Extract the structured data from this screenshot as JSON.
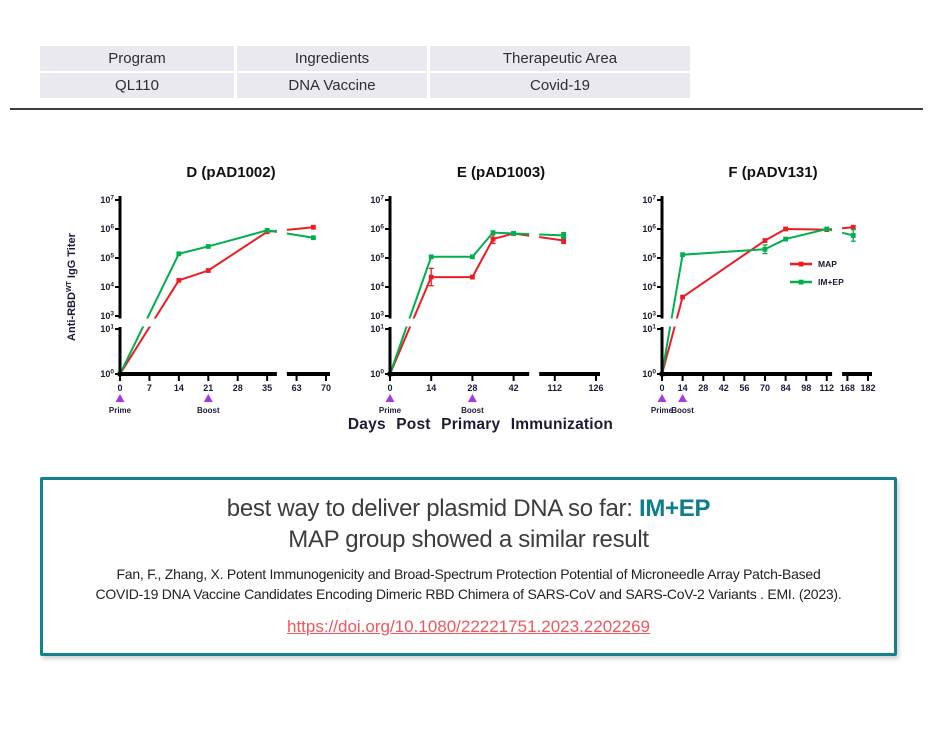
{
  "table": {
    "headers": [
      "Program",
      "Ingredients",
      "Therapeutic Area"
    ],
    "rows": [
      [
        "QL110",
        "DNA Vaccine",
        "Covid-19"
      ]
    ]
  },
  "figure": {
    "x_axis_title": "Days Post Primary Immunization",
    "y_axis_title": {
      "base": "Anti-RBD",
      "sup": "WT",
      "rest": " IgG Titer"
    }
  },
  "legend": [
    {
      "label": "MAP",
      "color": "#ed1c24"
    },
    {
      "label": "IM+EP",
      "color": "#00b04e"
    }
  ],
  "colors": {
    "map_red": "#ed1c24",
    "imep_green": "#00b04e",
    "arrow_purple": "#a838e0",
    "box_teal": "#17808d",
    "link_red": "#f4555c",
    "table_cell_bg": "#e9e9ef",
    "axis_black": "#000000",
    "label_navy": "#1b1b35"
  },
  "chart_data": {
    "type": "line",
    "y_scale": "log10, broken axis: lower segment 10^0-10^1, upper segment 10^3-10^7",
    "y_ticks_upper_exponents": [
      7,
      6,
      5,
      4,
      3
    ],
    "y_ticks_lower_exponents": [
      1,
      0
    ],
    "charts": [
      {
        "title": "D (pAD1002)",
        "xticks": [
          0,
          7,
          14,
          21,
          28,
          35,
          63,
          70
        ],
        "xbreak_after_index": 5,
        "show_ylabel": true,
        "annotations": [
          {
            "label": "Prime",
            "day": 0
          },
          {
            "label": "Boost",
            "day": 21
          }
        ],
        "series": [
          {
            "name": "MAP",
            "color": "#ed1c24",
            "points": [
              {
                "d": 0,
                "v": 1
              },
              {
                "d": 14,
                "v": 17000
              },
              {
                "d": 21,
                "v": 37000
              },
              {
                "d": 35,
                "v": 800000
              },
              {
                "d": 67,
                "v": 1150000
              }
            ]
          },
          {
            "name": "IM+EP",
            "color": "#00b04e",
            "points": [
              {
                "d": 0,
                "v": 1
              },
              {
                "d": 14,
                "v": 140000
              },
              {
                "d": 21,
                "v": 250000
              },
              {
                "d": 35,
                "v": 900000
              },
              {
                "d": 67,
                "v": 500000
              }
            ]
          }
        ]
      },
      {
        "title": "E (pAD1003)",
        "xticks": [
          0,
          14,
          28,
          42,
          112,
          126
        ],
        "xbreak_after_index": 3,
        "annotations": [
          {
            "label": "Prime",
            "day": 0
          },
          {
            "label": "Boost",
            "day": 28
          }
        ],
        "series": [
          {
            "name": "MAP",
            "color": "#ed1c24",
            "points": [
              {
                "d": 0,
                "v": 1
              },
              {
                "d": 14,
                "v": 22000,
                "e": 0.3
              },
              {
                "d": 28,
                "v": 22000
              },
              {
                "d": 35,
                "v": 450000,
                "e": 0.15
              },
              {
                "d": 42,
                "v": 700000
              },
              {
                "d": 115,
                "v": 400000,
                "e": 0.1
              }
            ]
          },
          {
            "name": "IM+EP",
            "color": "#00b04e",
            "points": [
              {
                "d": 0,
                "v": 1
              },
              {
                "d": 14,
                "v": 110000
              },
              {
                "d": 28,
                "v": 110000
              },
              {
                "d": 35,
                "v": 750000
              },
              {
                "d": 42,
                "v": 700000
              },
              {
                "d": 115,
                "v": 600000,
                "e": 0.1
              }
            ]
          }
        ]
      },
      {
        "title": "F (pADV131)",
        "xticks": [
          0,
          14,
          28,
          42,
          56,
          70,
          84,
          98,
          112,
          168,
          182
        ],
        "xbreak_after_index": 8,
        "show_legend": true,
        "annotations": [
          {
            "label": "Prime",
            "day": 0
          },
          {
            "label": "Boost",
            "day": 14
          }
        ],
        "series": [
          {
            "name": "MAP",
            "color": "#ed1c24",
            "points": [
              {
                "d": 0,
                "v": 1
              },
              {
                "d": 14,
                "v": 4500
              },
              {
                "d": 70,
                "v": 400000
              },
              {
                "d": 84,
                "v": 1000000
              },
              {
                "d": 112,
                "v": 950000
              },
              {
                "d": 172,
                "v": 1150000
              }
            ]
          },
          {
            "name": "IM+EP",
            "color": "#00b04e",
            "points": [
              {
                "d": 0,
                "v": 1
              },
              {
                "d": 14,
                "v": 130000
              },
              {
                "d": 70,
                "v": 200000,
                "e": 0.15
              },
              {
                "d": 84,
                "v": 450000
              },
              {
                "d": 112,
                "v": 1000000
              },
              {
                "d": 172,
                "v": 600000,
                "e": 0.2
              }
            ]
          }
        ]
      }
    ]
  },
  "conclusion": {
    "line1_prefix": "best way to deliver plasmid DNA so far: ",
    "line1_highlight": "IM+EP",
    "line2": "MAP group showed a similar result",
    "citation_line1": "Fan, F., Zhang, X. Potent Immunogenicity and Broad-Spectrum Protection Potential of Microneedle Array Patch-Based",
    "citation_line2": "COVID-19 DNA Vaccine Candidates Encoding Dimeric RBD Chimera of SARS-CoV and SARS-CoV-2 Variants . EMI. (2023).",
    "link_text": "https://doi.org/10.1080/22221751.2023.2202269"
  }
}
